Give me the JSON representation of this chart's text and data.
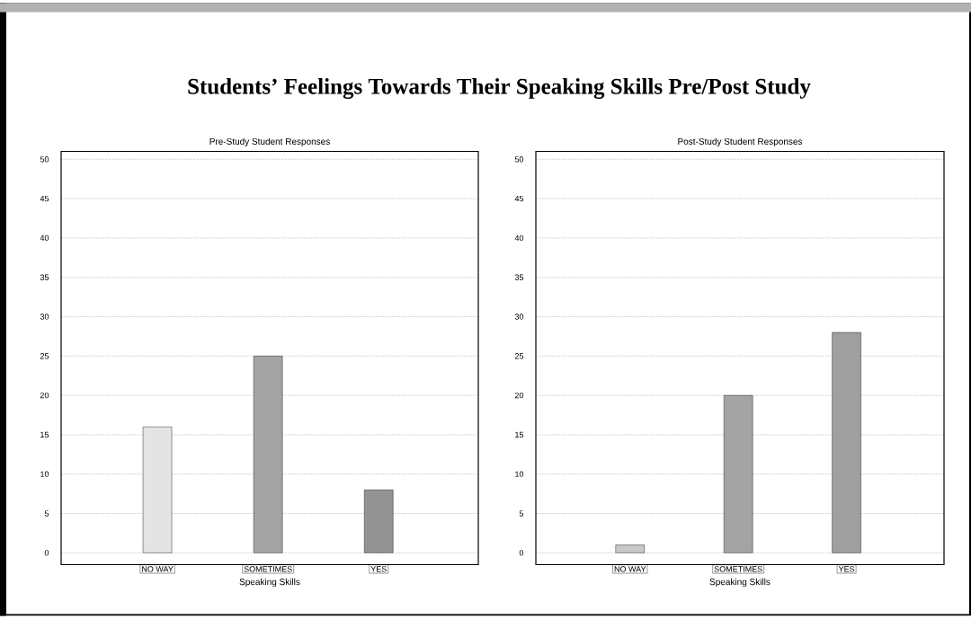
{
  "chart_data": [
    {
      "type": "bar",
      "title": "Students’ Feelings Towards Their Speaking Skills Pre/Post Study",
      "subtitle": "Pre-Study Student Responses",
      "xlabel": "Speaking Skills",
      "categories": [
        "NO WAY",
        "SOMETIMES",
        "YES"
      ],
      "values": [
        16,
        25,
        8
      ],
      "colors": [
        "#e4e4e4",
        "#a4a4a4",
        "#939393"
      ],
      "ylim": [
        -1.5,
        51
      ],
      "yticks": [
        0,
        5,
        10,
        15,
        20,
        25,
        30,
        35,
        40,
        45,
        50
      ],
      "grid": "y"
    },
    {
      "type": "bar",
      "title": "Post-Study Student Responses",
      "xlabel": "Speaking Skills",
      "categories": [
        "NO WAY",
        "SOMETIMES",
        "YES"
      ],
      "values": [
        1,
        20,
        28
      ],
      "colors": [
        "#c8c8c8",
        "#a4a4a4",
        "#a0a0a0"
      ],
      "ylim": [
        -1.5,
        51
      ],
      "yticks": [
        0,
        5,
        10,
        15,
        20,
        25,
        30,
        35,
        40,
        45,
        50
      ],
      "grid": "y"
    }
  ]
}
